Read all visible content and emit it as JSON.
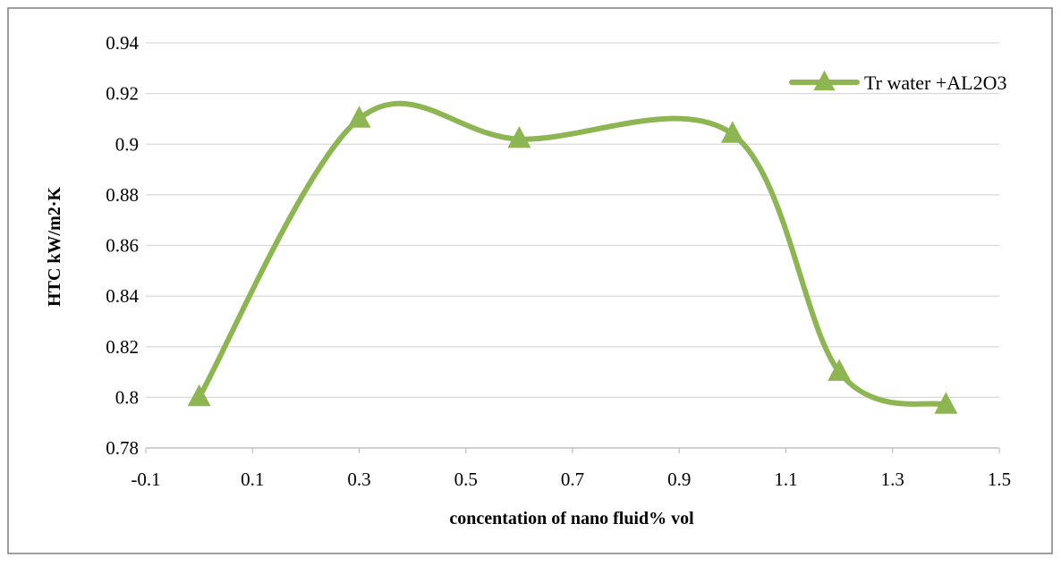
{
  "chart_data": {
    "type": "line",
    "smooth": true,
    "title": "",
    "xlabel": "concentation of nano fluid% vol",
    "ylabel": "HTC kW/m2·K",
    "xlim": [
      -0.1,
      1.5
    ],
    "ylim": [
      0.78,
      0.94
    ],
    "x_ticks": [
      "-0.1",
      "0.1",
      "0.3",
      "0.5",
      "0.7",
      "0.9",
      "1.1",
      "1.3",
      "1.5"
    ],
    "x_tick_values": [
      -0.1,
      0.1,
      0.3,
      0.5,
      0.7,
      0.9,
      1.1,
      1.3,
      1.5
    ],
    "y_ticks": [
      "0.78",
      "0.8",
      "0.82",
      "0.84",
      "0.86",
      "0.88",
      "0.9",
      "0.92",
      "0.94"
    ],
    "y_tick_values": [
      0.78,
      0.8,
      0.82,
      0.84,
      0.86,
      0.88,
      0.9,
      0.92,
      0.94
    ],
    "grid": "horizontal",
    "legend_position": "top-right",
    "series": [
      {
        "name": "Tr water +AL2O3",
        "color": "#8db653",
        "marker": "triangle",
        "x": [
          0.0,
          0.3,
          0.6,
          1.0,
          1.2,
          1.4
        ],
        "y": [
          0.8,
          0.91,
          0.902,
          0.904,
          0.81,
          0.797
        ]
      }
    ]
  }
}
